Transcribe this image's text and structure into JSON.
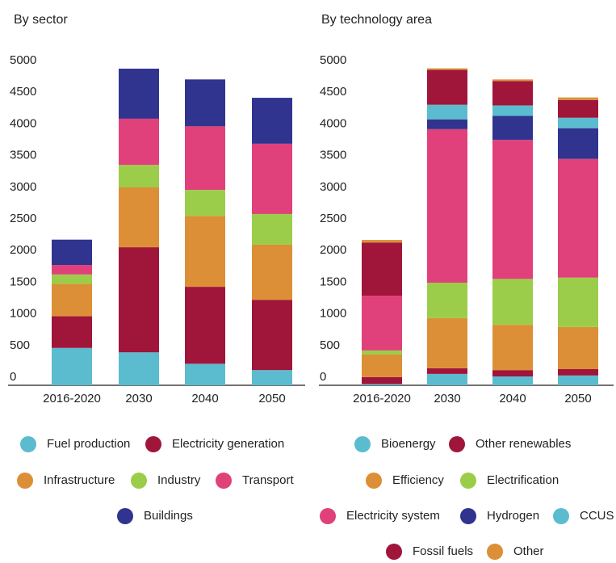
{
  "chart_data": [
    {
      "type": "bar",
      "stacked": true,
      "title": "By sector",
      "categories": [
        "2016-2020",
        "2030",
        "2040",
        "2050"
      ],
      "ylim": [
        0,
        5000
      ],
      "yticks": [
        0,
        500,
        1000,
        1500,
        2000,
        2500,
        3000,
        3500,
        4000,
        4500,
        5000
      ],
      "grid": false,
      "series": [
        {
          "name": "Fuel production",
          "color": "#5bbccf",
          "values": [
            590,
            520,
            340,
            240
          ]
        },
        {
          "name": "Electricity generation",
          "color": "#a0153a",
          "values": [
            500,
            1660,
            1215,
            1110
          ]
        },
        {
          "name": "Infrastructure",
          "color": "#dc8f36",
          "values": [
            510,
            945,
            1120,
            870
          ]
        },
        {
          "name": "Industry",
          "color": "#9ccd4a",
          "values": [
            150,
            355,
            410,
            485
          ]
        },
        {
          "name": "Transport",
          "color": "#e0417a",
          "values": [
            150,
            730,
            1005,
            1110
          ]
        },
        {
          "name": "Buildings",
          "color": "#30348f",
          "values": [
            400,
            790,
            740,
            725
          ]
        }
      ]
    },
    {
      "type": "bar",
      "stacked": true,
      "title": "By technology area",
      "categories": [
        "2016-2020",
        "2030",
        "2040",
        "2050"
      ],
      "ylim": [
        0,
        5000
      ],
      "yticks": [
        0,
        500,
        1000,
        1500,
        2000,
        2500,
        3000,
        3500,
        4000,
        4500,
        5000
      ],
      "grid": false,
      "series": [
        {
          "name": "Bioenergy",
          "color": "#5bbccf",
          "values": [
            20,
            180,
            140,
            155
          ]
        },
        {
          "name": "Fossil fuels",
          "color": "#a0153a",
          "values": [
            110,
            90,
            100,
            100
          ]
        },
        {
          "name": "Efficiency",
          "color": "#dc8f36",
          "values": [
            355,
            790,
            715,
            665
          ]
        },
        {
          "name": "Electrification",
          "color": "#9ccd4a",
          "values": [
            65,
            560,
            725,
            780
          ]
        },
        {
          "name": "Electricity system",
          "color": "#e0417a",
          "values": [
            865,
            2425,
            2195,
            1875
          ]
        },
        {
          "name": "Hydrogen",
          "color": "#30348f",
          "values": [
            0,
            155,
            380,
            485
          ]
        },
        {
          "name": "CCUS",
          "color": "#5bbccf",
          "values": [
            0,
            230,
            165,
            165
          ]
        },
        {
          "name": "Other renewables",
          "color": "#a0153a",
          "values": [
            840,
            550,
            385,
            280
          ]
        },
        {
          "name": "Other",
          "color": "#dc8f36",
          "values": [
            40,
            25,
            25,
            40
          ]
        }
      ]
    }
  ]
}
